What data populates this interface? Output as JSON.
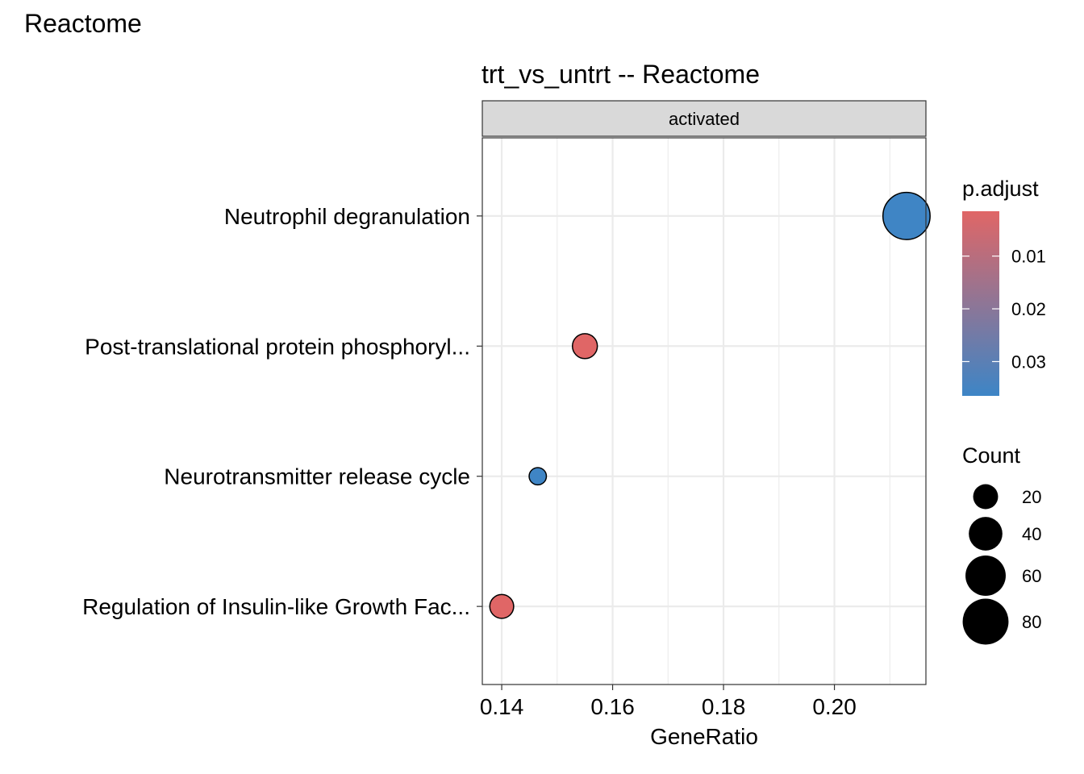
{
  "page_title": "Reactome",
  "chart_data": {
    "type": "scatter",
    "title": "trt_vs_untrt -- Reactome",
    "facet_label": "activated",
    "xlabel": "GeneRatio",
    "ylabel": "",
    "xlim": [
      0.1365,
      0.2165
    ],
    "x_ticks": [
      0.14,
      0.16,
      0.18,
      0.2
    ],
    "x_tick_labels": [
      "0.14",
      "0.16",
      "0.18",
      "0.20"
    ],
    "grid": true,
    "categories": [
      "Neutrophil degranulation",
      "Post-translational protein phosphoryl...",
      "Neurotransmitter release cycle",
      "Regulation of Insulin-like Growth Fac..."
    ],
    "points": [
      {
        "term": "Neutrophil degranulation",
        "x": 0.213,
        "count": 85,
        "p_adjust": 0.036
      },
      {
        "term": "Post-translational protein phosphoryl...",
        "x": 0.155,
        "count": 20,
        "p_adjust": 0.0015
      },
      {
        "term": "Neurotransmitter release cycle",
        "x": 0.1465,
        "count": 8,
        "p_adjust": 0.036
      },
      {
        "term": "Regulation of Insulin-like Growth Fac...",
        "x": 0.14,
        "count": 18,
        "p_adjust": 0.0015
      }
    ],
    "color_legend": {
      "title": "p.adjust",
      "range": [
        0.0015,
        0.0365
      ],
      "ticks": [
        0.01,
        0.02,
        0.03
      ],
      "tick_labels": [
        "0.01",
        "0.02",
        "0.03"
      ],
      "low_color": "#e06666",
      "high_color": "#3d85c6"
    },
    "size_legend": {
      "title": "Count",
      "values": [
        20,
        40,
        60,
        80
      ],
      "labels": [
        "20",
        "40",
        "60",
        "80"
      ]
    },
    "legend_position": "right"
  }
}
